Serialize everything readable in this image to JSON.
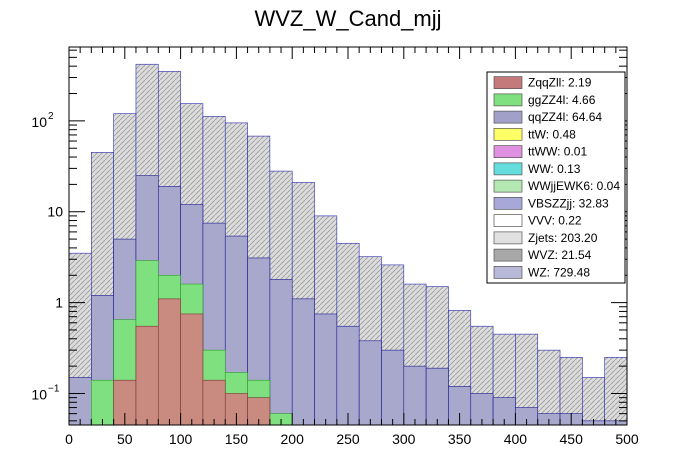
{
  "chart_data": {
    "type": "bar",
    "subtype": "stacked-histogram",
    "title": "WVZ_W_Cand_mjj",
    "xlabel": "",
    "ylabel": "",
    "log_y": true,
    "grid": false,
    "legend_position": "top-right",
    "xlim": [
      0,
      500
    ],
    "ylim": [
      0.045,
      650
    ],
    "x_ticks": [
      0,
      50,
      100,
      150,
      200,
      250,
      300,
      350,
      400,
      450,
      500
    ],
    "y_tick_labels": [
      {
        "value": 0.1,
        "label": "10",
        "exp": "−1"
      },
      {
        "value": 1,
        "label": "1",
        "exp": ""
      },
      {
        "value": 10,
        "label": "10",
        "exp": ""
      },
      {
        "value": 100,
        "label": "10",
        "exp": "2"
      }
    ],
    "bin_edges": [
      0,
      20,
      40,
      60,
      80,
      100,
      120,
      140,
      160,
      180,
      200,
      220,
      240,
      260,
      280,
      300,
      320,
      340,
      360,
      380,
      400,
      420,
      440,
      460,
      480,
      500
    ],
    "stack_outlines": [
      {
        "name": "ZqqZll",
        "values": [
          0,
          0,
          0.14,
          0.55,
          1.1,
          0.75,
          0.14,
          0.1,
          0.09,
          0,
          0,
          0,
          0,
          0,
          0,
          0,
          0,
          0,
          0,
          0,
          0,
          0,
          0,
          0,
          0
        ]
      },
      {
        "name": "ggZZ4l",
        "values": [
          0,
          0.14,
          0.65,
          2.9,
          2.0,
          1.6,
          0.3,
          0.17,
          0.14,
          0.06,
          0,
          0,
          0,
          0,
          0,
          0,
          0,
          0,
          0,
          0,
          0,
          0,
          0,
          0,
          0
        ]
      },
      {
        "name": "WZ_lower",
        "values": [
          0.15,
          1.2,
          5.0,
          25,
          19,
          12,
          7.5,
          5.4,
          3.1,
          1.8,
          1.1,
          0.75,
          0.55,
          0.38,
          0.3,
          0.2,
          0.19,
          0.12,
          0.1,
          0.09,
          0.07,
          0.06,
          0.06,
          0.05,
          0.05
        ]
      },
      {
        "name": "WZ_total",
        "values": [
          3.5,
          45,
          120,
          420,
          350,
          155,
          112,
          95,
          68,
          28,
          21,
          9,
          4.5,
          3.2,
          2.6,
          1.6,
          1.5,
          0.82,
          0.55,
          0.45,
          0.45,
          0.3,
          0.25,
          0.15,
          0.25
        ]
      }
    ],
    "legend": [
      {
        "label": "ZqqZll: 2.19",
        "color": "#c47a7a"
      },
      {
        "label": "ggZZ4l: 4.66",
        "color": "#7ee07e"
      },
      {
        "label": "qqZZ4l: 64.64",
        "color": "#a0a0c8"
      },
      {
        "label": "ttW: 0.48",
        "color": "#ffff66"
      },
      {
        "label": "ttWW: 0.01",
        "color": "#e090e0"
      },
      {
        "label": "WW: 0.13",
        "color": "#66dddd"
      },
      {
        "label": "WWjjEWK6: 0.04",
        "color": "#b3e8b3"
      },
      {
        "label": "VBSZZjj: 32.83",
        "color": "#a8a8d8"
      },
      {
        "label": "VVV: 0.22",
        "color": "#ffffff"
      },
      {
        "label": "Zjets: 203.20",
        "color": "#e0e0e0"
      },
      {
        "label": "WVZ: 21.54",
        "color": "#a8a8a8"
      },
      {
        "label": "WZ: 729.48",
        "color": "#b8b8d8"
      }
    ]
  }
}
